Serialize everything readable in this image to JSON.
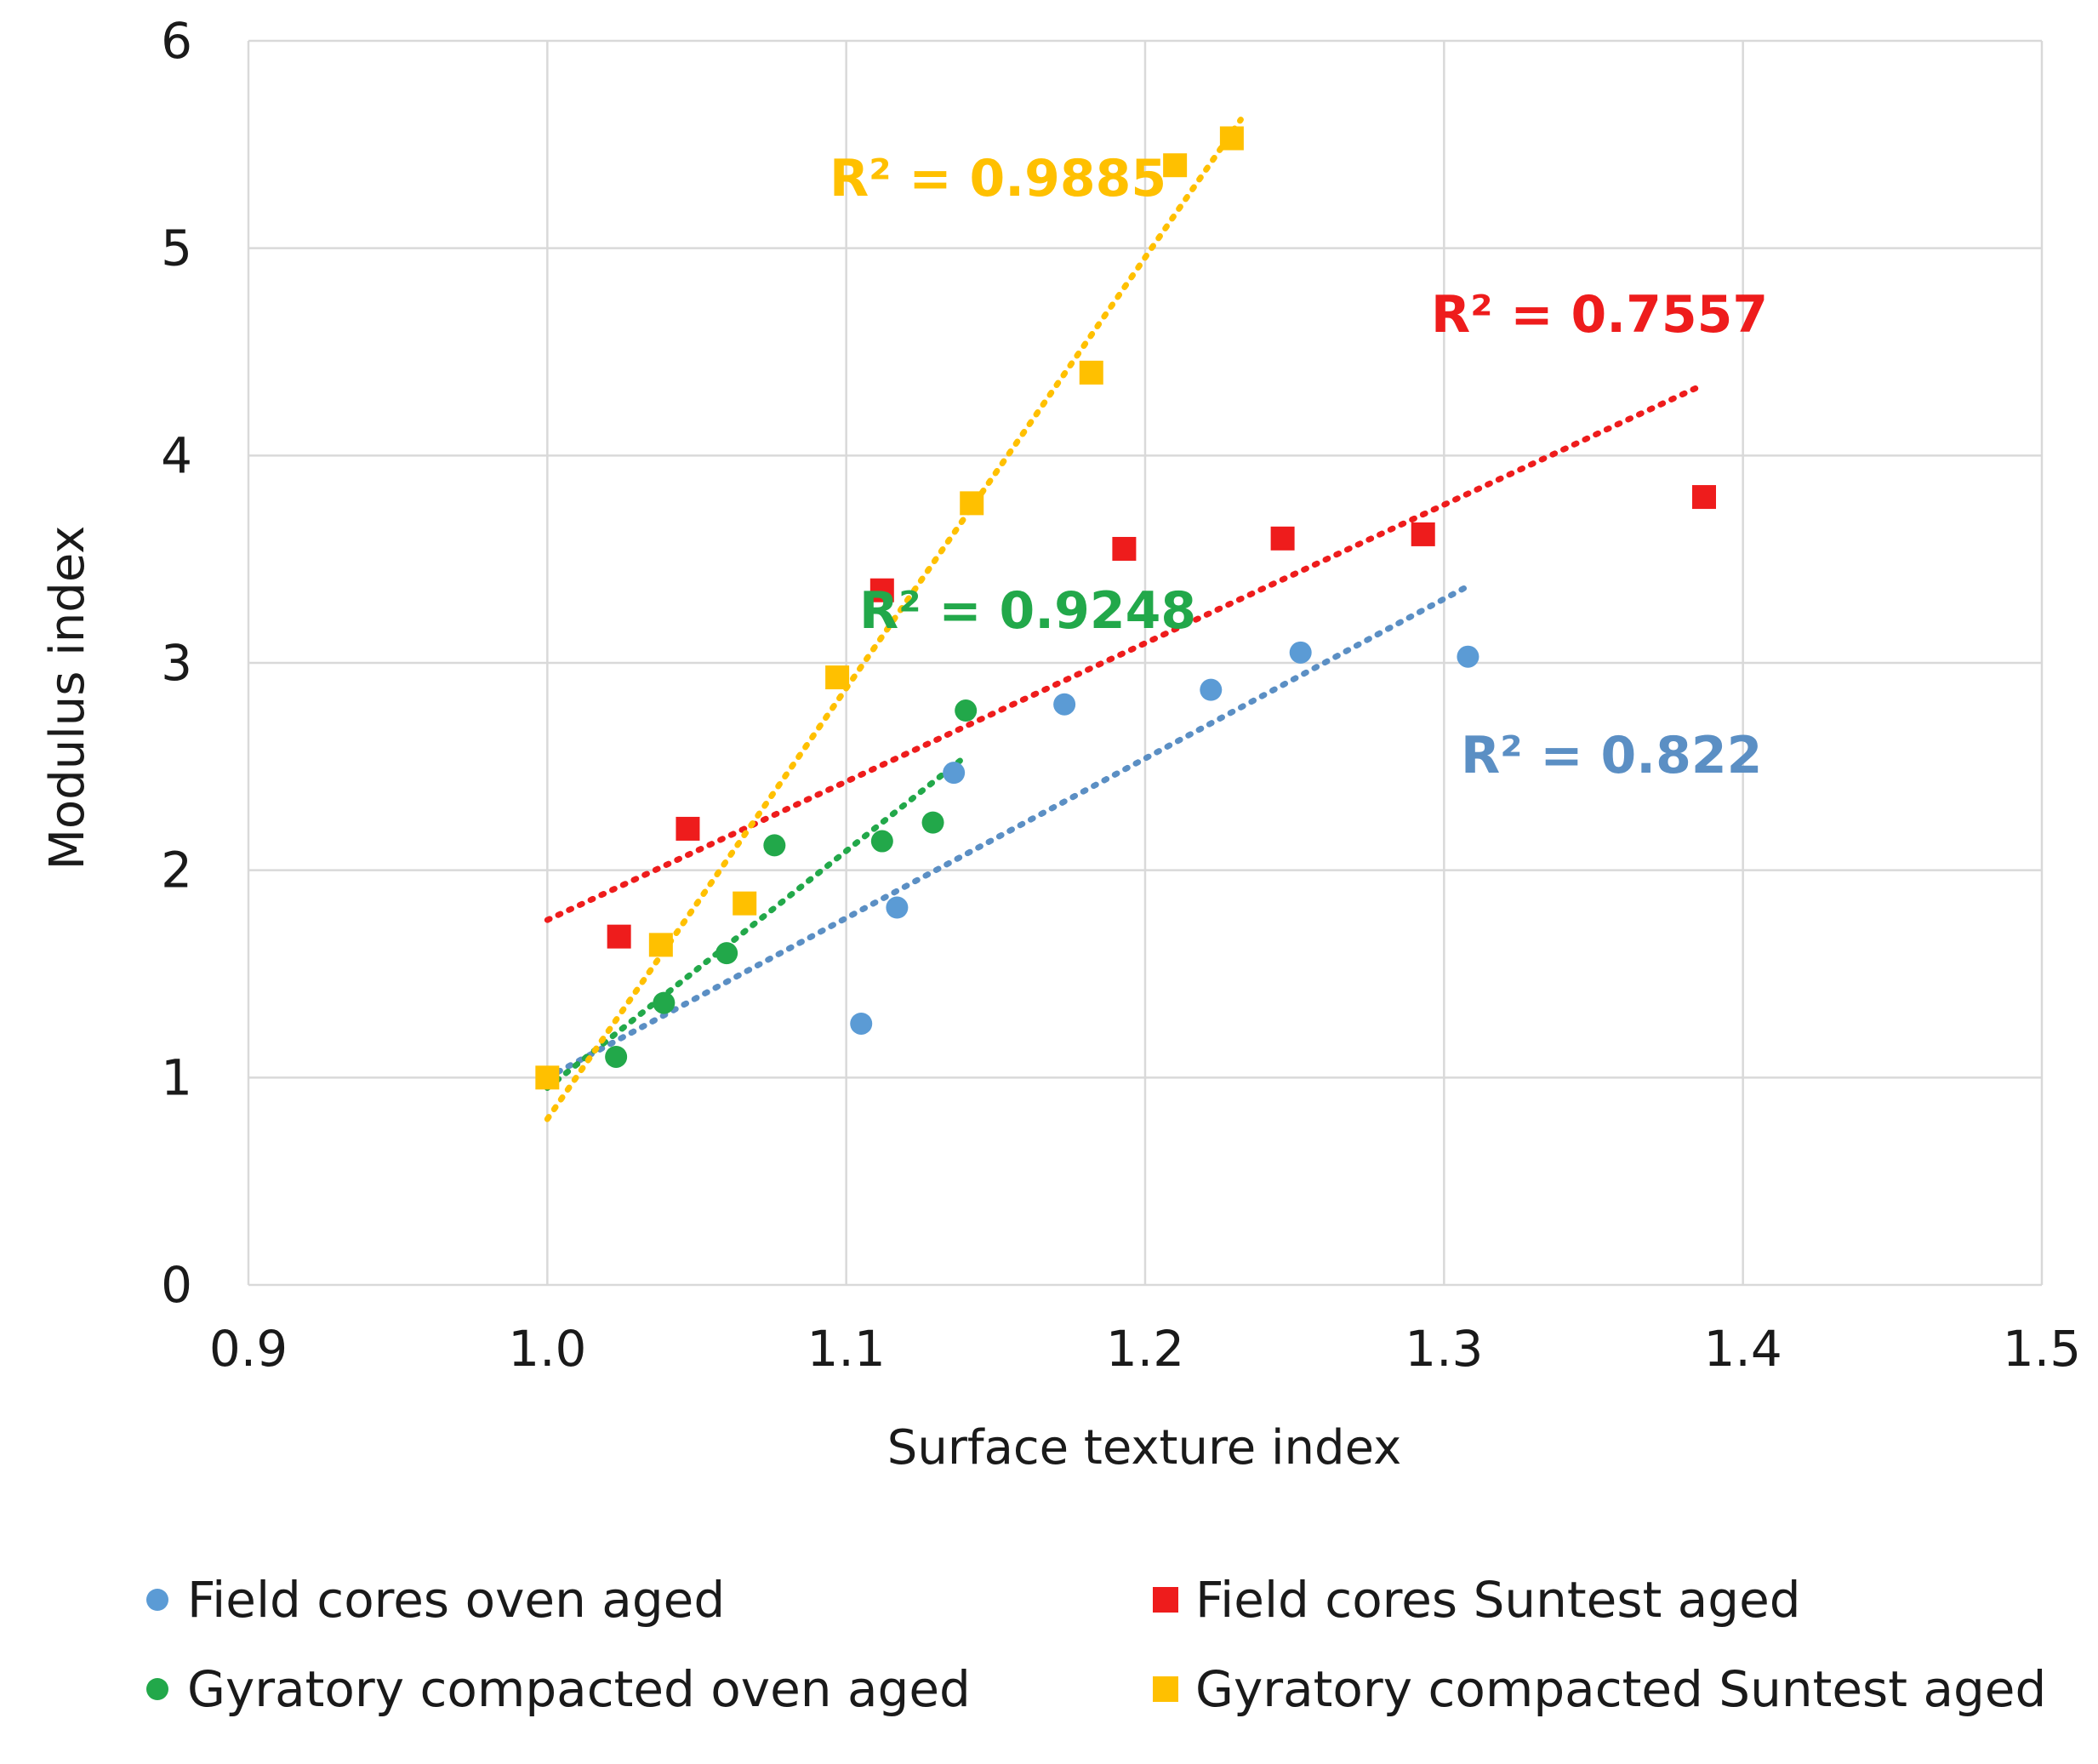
{
  "chart_data": {
    "type": "scatter",
    "title": "",
    "xlabel": "Surface texture index",
    "ylabel": "Modulus index",
    "xlim": [
      0.9,
      1.5
    ],
    "ylim": [
      0,
      6
    ],
    "x_ticks": [
      "0.9",
      "1.0",
      "1.1",
      "1.2",
      "1.3",
      "1.4",
      "1.5"
    ],
    "y_ticks": [
      "0",
      "1",
      "2",
      "3",
      "4",
      "5",
      "6"
    ],
    "grid": true,
    "legend_position": "bottom",
    "series": [
      {
        "name": "Field cores oven aged",
        "marker": "circle",
        "color": "#5b9bd5",
        "trend_color": "#5b8fc4",
        "x": [
          1.0,
          1.105,
          1.117,
          1.136,
          1.173,
          1.222,
          1.252,
          1.308
        ],
        "y": [
          1.0,
          1.26,
          1.82,
          2.47,
          2.8,
          2.87,
          3.05,
          3.03
        ],
        "trendline": {
          "x": [
            1.0,
            1.308
          ],
          "y": [
            1.0,
            3.37
          ]
        },
        "r2_label": "R² = 0.822"
      },
      {
        "name": "Field cores Suntest aged",
        "marker": "square",
        "color": "#ee1c1c",
        "trend_color": "#ee1c1c",
        "x": [
          1.024,
          1.047,
          1.112,
          1.193,
          1.246,
          1.293,
          1.387
        ],
        "y": [
          1.68,
          2.2,
          3.35,
          3.55,
          3.6,
          3.62,
          3.8
        ],
        "trendline": {
          "x": [
            1.0,
            1.385
          ],
          "y": [
            1.76,
            4.33
          ]
        },
        "r2_label": "R² = 0.7557"
      },
      {
        "name": "Gyratory compacted oven aged",
        "marker": "circle",
        "color": "#22a84a",
        "trend_color": "#22a84a",
        "x": [
          1.0,
          1.023,
          1.039,
          1.06,
          1.076,
          1.112,
          1.129,
          1.14
        ],
        "y": [
          1.0,
          1.1,
          1.36,
          1.6,
          2.12,
          2.14,
          2.23,
          2.77
        ],
        "trendline": {
          "x": [
            1.0,
            1.14
          ],
          "y": [
            0.95,
            2.55
          ]
        },
        "r2_label": "R² = 0.9248"
      },
      {
        "name": "Gyratory compacted Suntest aged",
        "marker": "square",
        "color": "#ffc000",
        "trend_color": "#ffc000",
        "x": [
          1.0,
          1.038,
          1.066,
          1.097,
          1.142,
          1.182,
          1.21,
          1.229
        ],
        "y": [
          1.0,
          1.64,
          1.84,
          2.93,
          3.77,
          4.4,
          5.4,
          5.53
        ],
        "trendline": {
          "x": [
            1.0,
            1.232
          ],
          "y": [
            0.8,
            5.62
          ]
        },
        "r2_label": "R² = 0.9885"
      }
    ]
  }
}
